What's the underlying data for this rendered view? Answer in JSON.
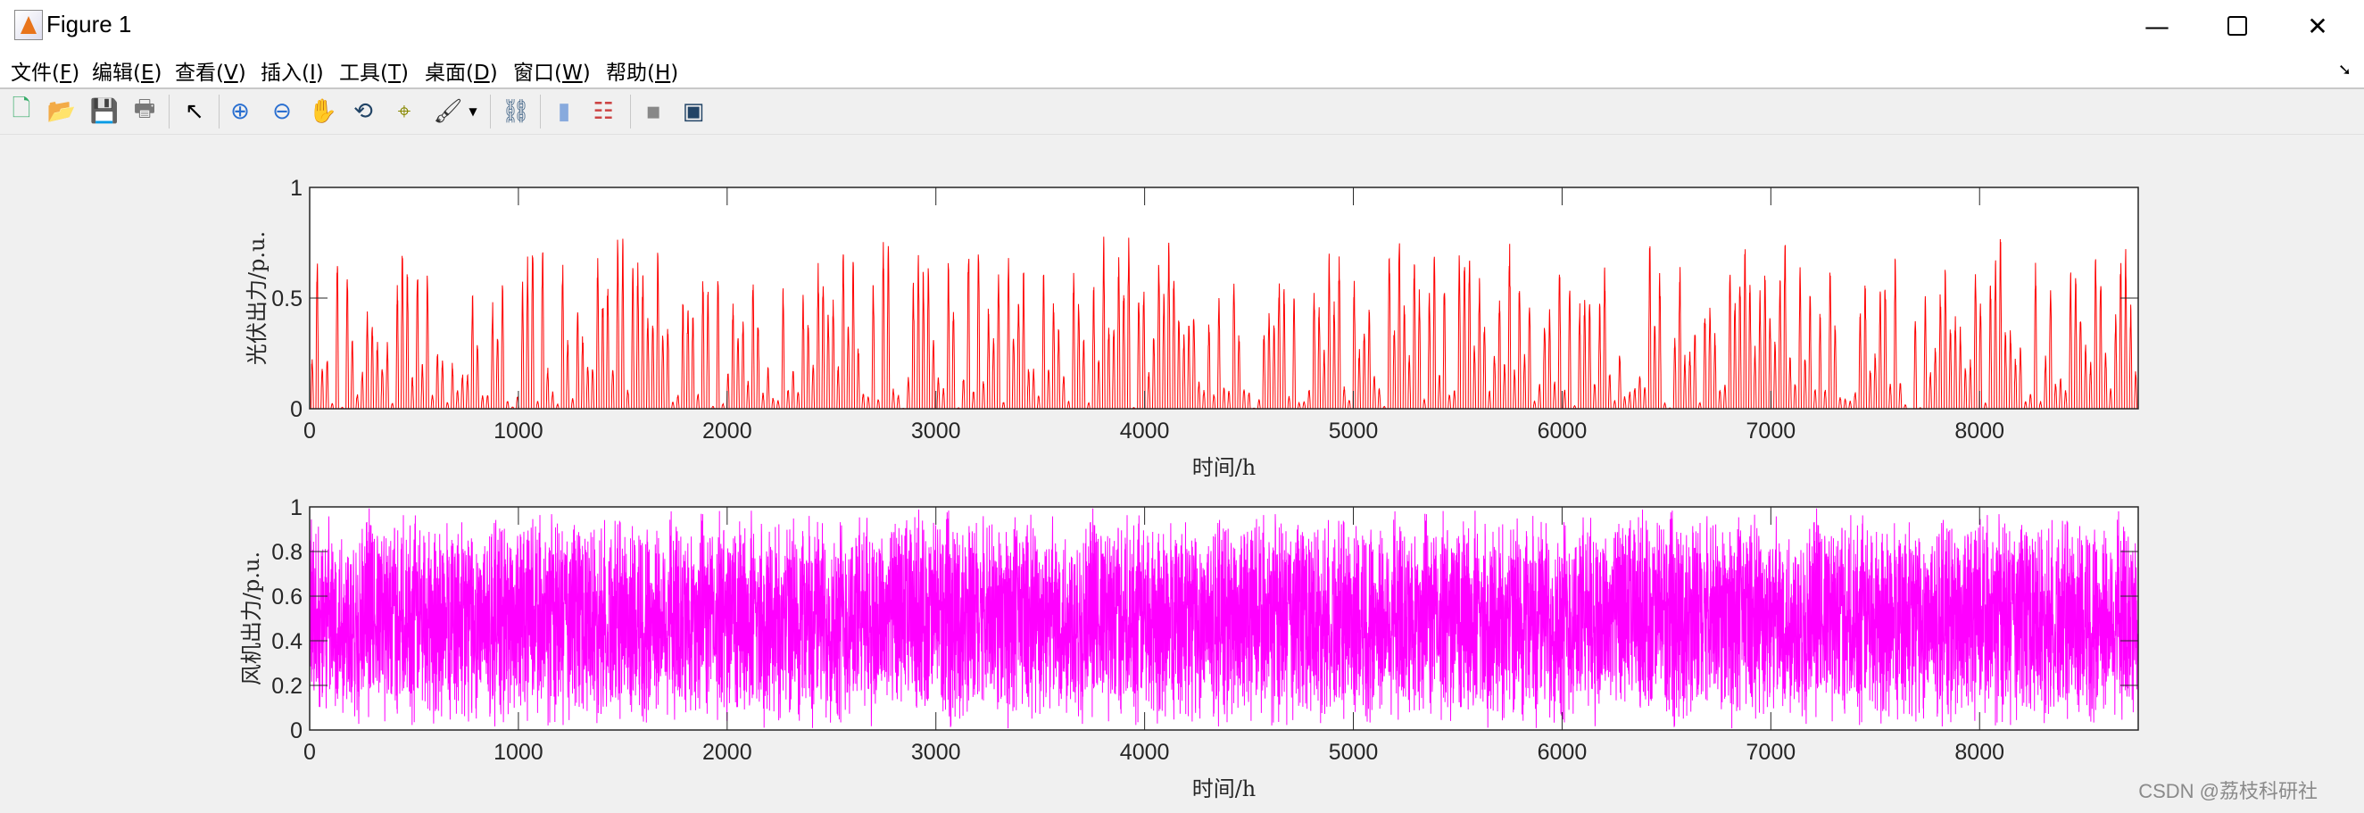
{
  "window": {
    "title": "Figure 1",
    "minimize_icon": "minimize-icon",
    "maximize_icon": "maximize-icon",
    "close_icon": "close-icon"
  },
  "menu": [
    {
      "label": "文件(",
      "key": "F",
      "end": ")"
    },
    {
      "label": "编辑(",
      "key": "E",
      "end": ")"
    },
    {
      "label": "查看(",
      "key": "V",
      "end": ")"
    },
    {
      "label": "插入(",
      "key": "I",
      "end": ")"
    },
    {
      "label": "工具(",
      "key": "T",
      "end": ")"
    },
    {
      "label": "桌面(",
      "key": "D",
      "end": ")"
    },
    {
      "label": "窗口(",
      "key": "W",
      "end": ")"
    },
    {
      "label": "帮助(",
      "key": "H",
      "end": ")"
    }
  ],
  "toolbar": [
    "new-figure-icon",
    "open-file-icon",
    "save-icon",
    "print-icon",
    "pointer-icon",
    "zoom-in-icon",
    "zoom-out-icon",
    "pan-hand-icon",
    "rotate-3d-icon",
    "data-cursor-icon",
    "brush-icon",
    "link-plot-icon",
    "colorbar-icon",
    "legend-icon",
    "hide-plot-tools-icon",
    "show-plot-tools-icon"
  ],
  "watermark": "CSDN @荔枝科研社",
  "chart_data": [
    {
      "type": "line",
      "xlabel": "时间/h",
      "ylabel": "光伏出力/p.u.",
      "xlim": [
        0,
        8760
      ],
      "ylim": [
        0,
        1
      ],
      "xticks": [
        "0",
        "1000",
        "2000",
        "3000",
        "4000",
        "5000",
        "6000",
        "7000",
        "8000"
      ],
      "yticks": [
        "0",
        "0.5",
        "1"
      ],
      "color": "#ff0000",
      "grid": false,
      "pattern": "daily solar profile, daily peaks 0–0.8 p.u., zero at night"
    },
    {
      "type": "line",
      "xlabel": "时间/h",
      "ylabel": "风机出力/p.u.",
      "xlim": [
        0,
        8760
      ],
      "ylim": [
        0,
        1
      ],
      "xticks": [
        "0",
        "1000",
        "2000",
        "3000",
        "4000",
        "5000",
        "6000",
        "7000",
        "8000"
      ],
      "yticks": [
        "0",
        "0.2",
        "0.4",
        "0.6",
        "0.8",
        "1"
      ],
      "color": "#ff00ff",
      "grid": false,
      "pattern": "hourly fluctuation between ~0 and ~1 p.u., mostly 0.1–0.85"
    }
  ]
}
